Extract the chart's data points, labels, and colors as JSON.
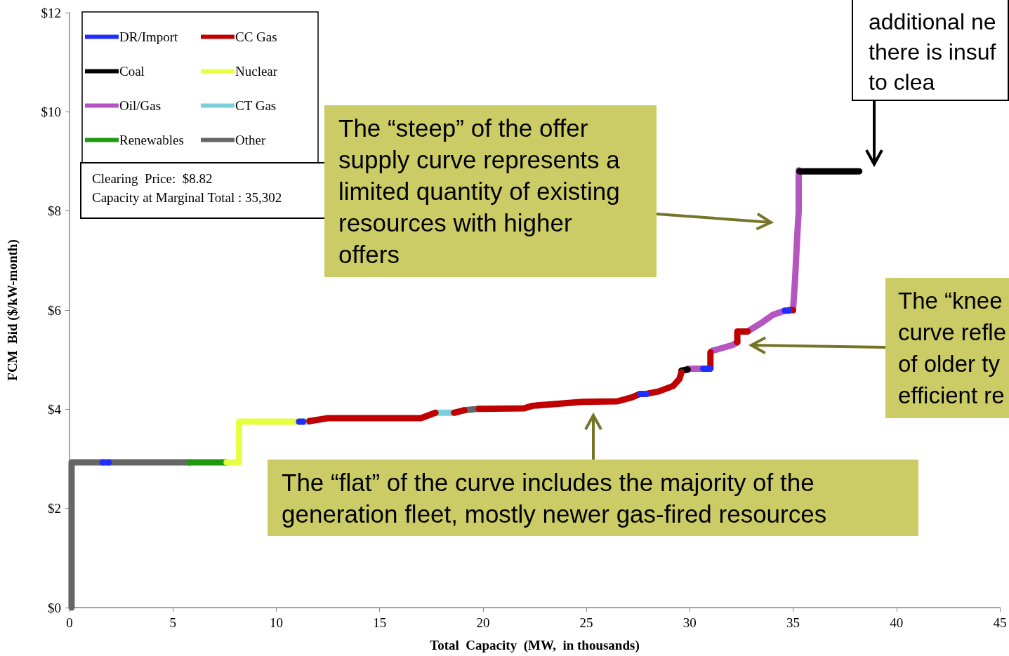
{
  "chart_data": {
    "type": "line",
    "xlabel": "Total  Capacity  (MW,  in thousands)",
    "ylabel": "FCM  Bid ($/kW-month)",
    "xlim": [
      0,
      45
    ],
    "xticks": [
      0,
      5,
      10,
      15,
      20,
      25,
      30,
      35,
      40,
      45
    ],
    "ylim": [
      0,
      12
    ],
    "yticks": [
      {
        "value": 0,
        "label": "$0"
      },
      {
        "value": 2,
        "label": "$2"
      },
      {
        "value": 4,
        "label": "$4"
      },
      {
        "value": 6,
        "label": "$6"
      },
      {
        "value": 8,
        "label": "$8"
      },
      {
        "value": 10,
        "label": "$10"
      },
      {
        "value": 12,
        "label": "$12"
      }
    ],
    "grid": false,
    "legend": "top left",
    "line_style": "solid",
    "series": [
      {
        "name": "DR/Import",
        "color": "#1f2fff",
        "x": [
          1.6,
          1.9,
          null,
          11.1,
          11.3,
          null,
          27.6,
          27.9,
          null,
          30.65,
          31.0,
          null,
          34.6,
          34.8
        ],
        "values": [
          2.93,
          2.93,
          null,
          3.75,
          3.75,
          null,
          4.31,
          4.31,
          null,
          4.82,
          4.82,
          null,
          5.99,
          5.99
        ]
      },
      {
        "name": "CC Gas",
        "color": "#c00000",
        "x": [
          11.6,
          12.5,
          17.0,
          17.7,
          null,
          18.6,
          19.1,
          null,
          19.8,
          22.0,
          22.4,
          24.8,
          26.5,
          27.2,
          27.6,
          null,
          27.9,
          28.5,
          29.2,
          29.5,
          29.6,
          null,
          31.0,
          31.0,
          null,
          32.3,
          32.3,
          32.8,
          null,
          34.8,
          35.0
        ],
        "values": [
          3.76,
          3.82,
          3.82,
          3.93,
          null,
          3.93,
          3.98,
          null,
          4.01,
          4.02,
          4.07,
          4.15,
          4.16,
          4.24,
          4.31,
          null,
          4.31,
          4.36,
          4.47,
          4.61,
          4.75,
          null,
          4.82,
          5.15,
          null,
          5.35,
          5.57,
          5.57,
          null,
          6.0,
          6.0
        ]
      },
      {
        "name": "Coal",
        "color": "#000000",
        "x": [
          29.6,
          29.9,
          null,
          35.3,
          38.2
        ],
        "values": [
          4.78,
          4.8,
          null,
          8.8,
          8.8
        ]
      },
      {
        "name": "Nuclear",
        "color": "#e6ff40",
        "x": [
          7.6,
          8.2,
          8.2,
          11.1
        ],
        "values": [
          2.93,
          2.93,
          3.75,
          3.75
        ]
      },
      {
        "name": "Oil/Gas",
        "color": "#b455c0",
        "x": [
          29.9,
          30.65,
          null,
          31.1,
          32.1,
          32.3,
          null,
          32.8,
          33.5,
          34.0,
          34.6,
          null,
          35.0,
          35.0,
          35.1,
          35.2,
          35.27,
          35.27
        ],
        "values": [
          4.82,
          4.82,
          null,
          5.18,
          5.3,
          5.35,
          null,
          5.57,
          5.75,
          5.9,
          5.99,
          null,
          6.0,
          6.03,
          6.66,
          7.51,
          8.0,
          8.82
        ]
      },
      {
        "name": "CT Gas",
        "color": "#7ccfd8",
        "x": [
          11.3,
          11.6,
          null,
          17.7,
          18.6
        ],
        "values": [
          3.75,
          3.75,
          null,
          3.93,
          3.93
        ]
      },
      {
        "name": "Renewables",
        "color": "#1f9a10",
        "x": [
          5.8,
          7.6
        ],
        "values": [
          2.93,
          2.93
        ]
      },
      {
        "name": "Other",
        "color": "#666666",
        "x": [
          0.1,
          0.1,
          1.6,
          null,
          1.9,
          5.8,
          null,
          19.1,
          19.8
        ],
        "values": [
          0,
          2.93,
          2.93,
          null,
          2.93,
          2.93,
          null,
          3.98,
          4.01
        ]
      }
    ],
    "annotations": [
      "Clearing  Price:  $8.82\nCapacity at Marginal Total : 35,302",
      "The “steep” of the offer\nsupply curve represents a\nlimited quantity of existing\nresources with higher\noffers",
      "The “flat” of the curve includes the majority of the\ngeneration fleet, mostly newer gas-fired resources",
      "The “knee\ncurve refle\nof older ty\nefficient re",
      "additional ne\nthere is insuf\nto clea"
    ]
  }
}
